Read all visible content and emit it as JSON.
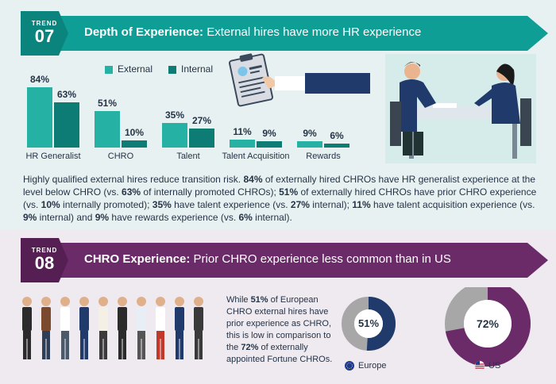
{
  "trend07": {
    "label": "TREND",
    "number": "07",
    "title_bold": "Depth of Experience:",
    "title_rest": " External hires have more HR experience",
    "accent": "#0e9e96",
    "accent_dark": "#0b847d"
  },
  "legend": {
    "external": "External",
    "internal": "Internal"
  },
  "chart_data": {
    "type": "bar",
    "categories": [
      "HR Generalist",
      "CHRO",
      "Talent",
      "Talent Acquisition",
      "Rewards"
    ],
    "series": [
      {
        "name": "External",
        "values": [
          84,
          51,
          35,
          11,
          9
        ],
        "color": "#26b1a5"
      },
      {
        "name": "Internal",
        "values": [
          63,
          10,
          27,
          9,
          6
        ],
        "color": "#0c7c74"
      }
    ],
    "value_labels_ext": [
      "84%",
      "51%",
      "35%",
      "11%",
      "9%"
    ],
    "value_labels_int": [
      "63%",
      "10%",
      "27%",
      "9%",
      "6%"
    ],
    "ylim": [
      0,
      100
    ]
  },
  "para1": [
    {
      "t": "Highly qualified external hires reduce transition risk. ",
      "b": false
    },
    {
      "t": "84%",
      "b": true
    },
    {
      "t": " of externally hired CHROs have HR generalist experience at the level below CHRO (vs. ",
      "b": false
    },
    {
      "t": "63%",
      "b": true
    },
    {
      "t": " of internally promoted CHROs); ",
      "b": false
    },
    {
      "t": "51%",
      "b": true
    },
    {
      "t": " of externally hired CHROs have prior CHRO experience (vs. ",
      "b": false
    },
    {
      "t": "10%",
      "b": true
    },
    {
      "t": " internally promoted); ",
      "b": false
    },
    {
      "t": "35%",
      "b": true
    },
    {
      "t": " have talent experience (vs. ",
      "b": false
    },
    {
      "t": "27%",
      "b": true
    },
    {
      "t": " internal); ",
      "b": false
    },
    {
      "t": "11%",
      "b": true
    },
    {
      "t": " have talent acquisition experience (vs. ",
      "b": false
    },
    {
      "t": "9%",
      "b": true
    },
    {
      "t": " internal) and ",
      "b": false
    },
    {
      "t": "9%",
      "b": true
    },
    {
      "t": " have rewards experience (vs. ",
      "b": false
    },
    {
      "t": "6%",
      "b": true
    },
    {
      "t": " internal).",
      "b": false
    }
  ],
  "trend08": {
    "label": "TREND",
    "number": "08",
    "title_bold": "CHRO Experience:",
    "title_rest": " Prior CHRO experience less common than in US",
    "accent": "#6b2a68",
    "accent_dark": "#561f53"
  },
  "para2": [
    {
      "t": "While ",
      "b": false
    },
    {
      "t": "51%",
      "b": true
    },
    {
      "t": " of European CHRO external hires have prior experience as CHRO, this is low in comparison to the ",
      "b": false
    },
    {
      "t": "72%",
      "b": true
    },
    {
      "t": " of externally appointed Fortune CHROs.",
      "b": false
    }
  ],
  "donuts": [
    {
      "label": "51%",
      "region": "Europe",
      "value": 51,
      "color": "#1f3a6b"
    },
    {
      "label": "72%",
      "region": "US",
      "value": 72,
      "color": "#6b2a68"
    }
  ]
}
